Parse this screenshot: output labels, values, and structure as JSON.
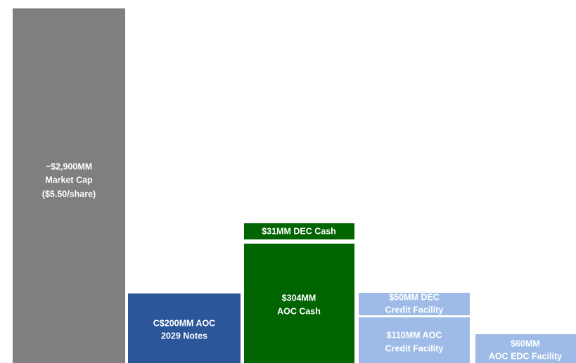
{
  "blocks": [
    {
      "lines": [
        "~$2,900MM",
        "Market Cap",
        "($5.50/share)"
      ]
    },
    {
      "lines": [
        "C$200MM AOC",
        "2029 Notes"
      ]
    },
    {
      "lines": [
        "$31MM DEC Cash"
      ]
    },
    {
      "lines": [
        "$304MM",
        "AOC Cash"
      ]
    },
    {
      "lines": [
        "$50MM DEC",
        "Credit Facility"
      ]
    },
    {
      "lines": [
        "$110MM AOC",
        "Credit Facility"
      ]
    },
    {
      "lines": [
        "$60MM",
        "AOC EDC Facility"
      ]
    }
  ]
}
